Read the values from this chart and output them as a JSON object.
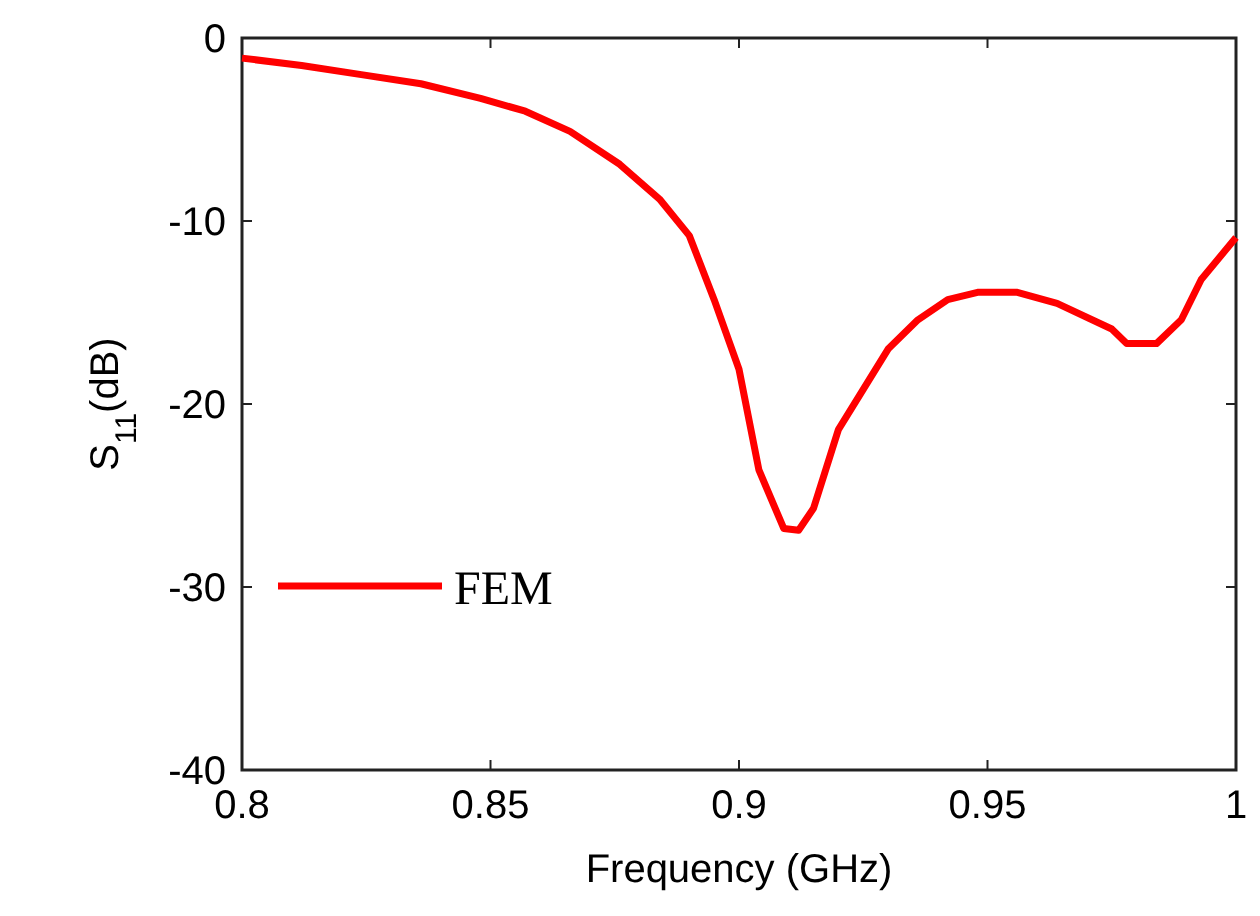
{
  "chart_data": {
    "type": "line",
    "xlabel": "Frequency (GHz)",
    "ylabel": "S$_{11}$(dB)",
    "xlim": [
      0.8,
      1
    ],
    "xticks": [
      0.8,
      0.85,
      0.9,
      0.95,
      1
    ],
    "ylim": [
      -40,
      0
    ],
    "yticks": [
      -40,
      -30,
      -20,
      -10,
      0
    ],
    "grid": false,
    "legend": "bottom left",
    "line_style": "solid",
    "series": [
      {
        "name": "FEM",
        "color": "#ff0000",
        "x": [
          0.8,
          0.812,
          0.824,
          0.836,
          0.848,
          0.857,
          0.866,
          0.876,
          0.884,
          0.89,
          0.895,
          0.9,
          0.904,
          0.909,
          0.912,
          0.915,
          0.92,
          0.925,
          0.93,
          0.936,
          0.942,
          0.948,
          0.956,
          0.964,
          0.975,
          0.978,
          0.984,
          0.989,
          0.993,
          1.0
        ],
        "values": [
          -1.1,
          -1.5,
          -2.0,
          -2.5,
          -3.3,
          -4.0,
          -5.1,
          -6.9,
          -8.8,
          -10.8,
          -14.3,
          -18.1,
          -23.6,
          -26.8,
          -26.9,
          -25.7,
          -21.4,
          -19.2,
          -17.0,
          -15.4,
          -14.3,
          -13.9,
          -13.9,
          -14.5,
          -15.9,
          -16.7,
          -16.7,
          -15.4,
          -13.2,
          -10.9
        ]
      }
    ]
  }
}
